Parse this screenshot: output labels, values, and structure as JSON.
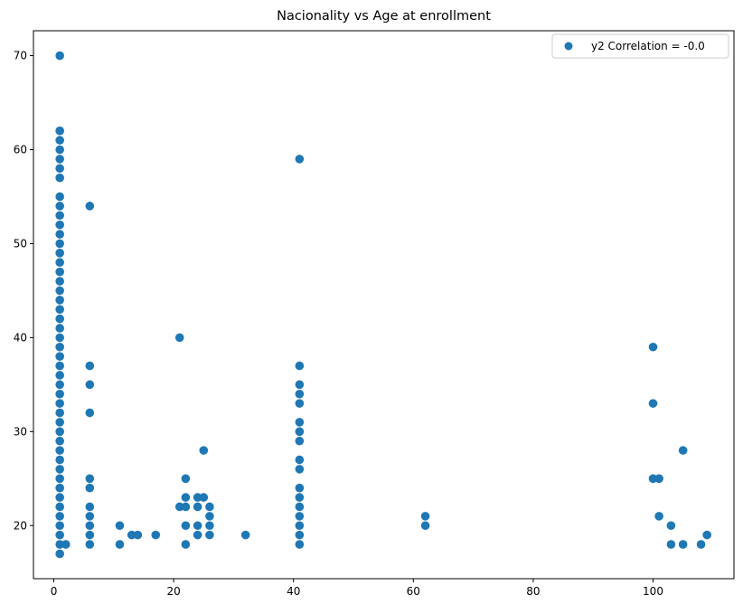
{
  "chart_data": {
    "type": "scatter",
    "title": "Nacionality vs Age at enrollment",
    "xlabel": "",
    "ylabel": "",
    "xlim": [
      -3.4,
      113.5
    ],
    "ylim": [
      14.35,
      72.65
    ],
    "xticks": [
      0,
      20,
      40,
      60,
      80,
      100
    ],
    "yticks": [
      20,
      30,
      40,
      50,
      60,
      70
    ],
    "grid": false,
    "legend": {
      "position": "top-right"
    },
    "series": [
      {
        "name": "y2 Correlation = -0.0",
        "color": "#1f77b4",
        "points": [
          [
            1,
            17
          ],
          [
            1,
            18
          ],
          [
            1,
            19
          ],
          [
            1,
            20
          ],
          [
            1,
            21
          ],
          [
            1,
            22
          ],
          [
            1,
            23
          ],
          [
            1,
            24
          ],
          [
            1,
            25
          ],
          [
            1,
            26
          ],
          [
            1,
            27
          ],
          [
            1,
            28
          ],
          [
            1,
            29
          ],
          [
            1,
            30
          ],
          [
            1,
            31
          ],
          [
            1,
            32
          ],
          [
            1,
            33
          ],
          [
            1,
            34
          ],
          [
            1,
            35
          ],
          [
            1,
            36
          ],
          [
            1,
            37
          ],
          [
            1,
            38
          ],
          [
            1,
            39
          ],
          [
            1,
            40
          ],
          [
            1,
            41
          ],
          [
            1,
            42
          ],
          [
            1,
            43
          ],
          [
            1,
            44
          ],
          [
            1,
            45
          ],
          [
            1,
            46
          ],
          [
            1,
            47
          ],
          [
            1,
            48
          ],
          [
            1,
            49
          ],
          [
            1,
            50
          ],
          [
            1,
            51
          ],
          [
            1,
            52
          ],
          [
            1,
            53
          ],
          [
            1,
            54
          ],
          [
            1,
            55
          ],
          [
            1,
            57
          ],
          [
            1,
            58
          ],
          [
            1,
            59
          ],
          [
            1,
            60
          ],
          [
            1,
            61
          ],
          [
            1,
            62
          ],
          [
            1,
            70
          ],
          [
            2,
            18
          ],
          [
            6,
            18
          ],
          [
            6,
            19
          ],
          [
            6,
            20
          ],
          [
            6,
            21
          ],
          [
            6,
            22
          ],
          [
            6,
            24
          ],
          [
            6,
            25
          ],
          [
            6,
            32
          ],
          [
            6,
            35
          ],
          [
            6,
            37
          ],
          [
            6,
            54
          ],
          [
            11,
            18
          ],
          [
            11,
            20
          ],
          [
            13,
            19
          ],
          [
            14,
            19
          ],
          [
            17,
            19
          ],
          [
            21,
            22
          ],
          [
            21,
            40
          ],
          [
            22,
            18
          ],
          [
            22,
            20
          ],
          [
            22,
            22
          ],
          [
            22,
            23
          ],
          [
            22,
            25
          ],
          [
            24,
            19
          ],
          [
            24,
            20
          ],
          [
            24,
            22
          ],
          [
            24,
            23
          ],
          [
            25,
            23
          ],
          [
            25,
            28
          ],
          [
            26,
            19
          ],
          [
            26,
            20
          ],
          [
            26,
            21
          ],
          [
            26,
            22
          ],
          [
            32,
            19
          ],
          [
            41,
            18
          ],
          [
            41,
            19
          ],
          [
            41,
            20
          ],
          [
            41,
            21
          ],
          [
            41,
            22
          ],
          [
            41,
            23
          ],
          [
            41,
            24
          ],
          [
            41,
            26
          ],
          [
            41,
            27
          ],
          [
            41,
            29
          ],
          [
            41,
            30
          ],
          [
            41,
            31
          ],
          [
            41,
            33
          ],
          [
            41,
            34
          ],
          [
            41,
            35
          ],
          [
            41,
            37
          ],
          [
            41,
            59
          ],
          [
            62,
            20
          ],
          [
            62,
            21
          ],
          [
            100,
            25
          ],
          [
            100,
            33
          ],
          [
            100,
            39
          ],
          [
            101,
            21
          ],
          [
            101,
            25
          ],
          [
            103,
            18
          ],
          [
            103,
            20
          ],
          [
            105,
            18
          ],
          [
            105,
            28
          ],
          [
            108,
            18
          ],
          [
            109,
            19
          ]
        ]
      }
    ]
  }
}
